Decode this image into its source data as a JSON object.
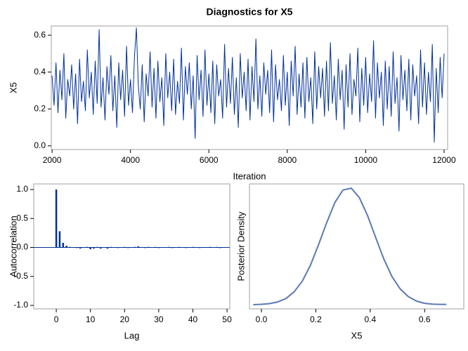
{
  "chart_data": [
    {
      "type": "line",
      "title": "Diagnostics for X5",
      "xlabel": "Iteration",
      "ylabel": "X5",
      "color": "#00309c",
      "xlim": [
        1980,
        12090
      ],
      "ylim": [
        -0.02,
        0.65
      ],
      "xticks": [
        2000,
        4000,
        6000,
        8000,
        10000,
        12000
      ],
      "yticks": [
        {
          "value": 0,
          "label": "0.0"
        },
        0.2,
        0.4,
        0.6
      ],
      "x": [
        2000,
        2050,
        2100,
        2150,
        2200,
        2250,
        2300,
        2350,
        2400,
        2450,
        2500,
        2550,
        2600,
        2650,
        2700,
        2750,
        2800,
        2850,
        2900,
        2950,
        3000,
        3050,
        3100,
        3150,
        3200,
        3250,
        3300,
        3350,
        3400,
        3450,
        3500,
        3550,
        3600,
        3650,
        3700,
        3750,
        3800,
        3850,
        3900,
        3950,
        4000,
        4050,
        4100,
        4150,
        4200,
        4250,
        4300,
        4350,
        4400,
        4450,
        4500,
        4550,
        4600,
        4650,
        4700,
        4750,
        4800,
        4850,
        4900,
        4950,
        5000,
        5050,
        5100,
        5150,
        5200,
        5250,
        5300,
        5350,
        5400,
        5450,
        5500,
        5550,
        5600,
        5650,
        5700,
        5750,
        5800,
        5850,
        5900,
        5950,
        6000,
        6050,
        6100,
        6150,
        6200,
        6250,
        6300,
        6350,
        6400,
        6450,
        6500,
        6550,
        6600,
        6650,
        6700,
        6750,
        6800,
        6850,
        6900,
        6950,
        7000,
        7050,
        7100,
        7150,
        7200,
        7250,
        7300,
        7350,
        7400,
        7450,
        7500,
        7550,
        7600,
        7650,
        7700,
        7750,
        7800,
        7850,
        7900,
        7950,
        8000,
        8050,
        8100,
        8150,
        8200,
        8250,
        8300,
        8350,
        8400,
        8450,
        8500,
        8550,
        8600,
        8650,
        8700,
        8750,
        8800,
        8850,
        8900,
        8950,
        9000,
        9050,
        9100,
        9150,
        9200,
        9250,
        9300,
        9350,
        9400,
        9450,
        9500,
        9550,
        9600,
        9650,
        9700,
        9750,
        9800,
        9850,
        9900,
        9950,
        10000,
        10050,
        10100,
        10150,
        10200,
        10250,
        10300,
        10350,
        10400,
        10450,
        10500,
        10550,
        10600,
        10650,
        10700,
        10750,
        10800,
        10850,
        10900,
        10950,
        11000,
        11050,
        11100,
        11150,
        11200,
        11250,
        11300,
        11350,
        11400,
        11450,
        11500,
        11550,
        11600,
        11650,
        11700,
        11750,
        11800,
        11850,
        11900,
        11950,
        12000
      ],
      "values": [
        0.38,
        0.22,
        0.45,
        0.18,
        0.41,
        0.25,
        0.5,
        0.15,
        0.36,
        0.27,
        0.44,
        0.2,
        0.39,
        0.12,
        0.47,
        0.24,
        0.35,
        0.19,
        0.52,
        0.26,
        0.4,
        0.17,
        0.46,
        0.23,
        0.63,
        0.21,
        0.37,
        0.14,
        0.43,
        0.28,
        0.49,
        0.19,
        0.38,
        0.1,
        0.45,
        0.25,
        0.41,
        0.16,
        0.54,
        0.22,
        0.36,
        0.18,
        0.48,
        0.64,
        0.33,
        0.2,
        0.44,
        0.13,
        0.39,
        0.27,
        0.51,
        0.21,
        0.42,
        0.15,
        0.46,
        0.24,
        0.37,
        0.11,
        0.5,
        0.26,
        0.4,
        0.19,
        0.47,
        0.17,
        0.35,
        0.23,
        0.53,
        0.14,
        0.43,
        0.28,
        0.45,
        0.2,
        0.38,
        0.04,
        0.49,
        0.25,
        0.41,
        0.16,
        0.52,
        0.22,
        0.39,
        0.18,
        0.46,
        0.12,
        0.44,
        0.27,
        0.36,
        0.15,
        0.55,
        0.21,
        0.42,
        0.23,
        0.48,
        0.17,
        0.37,
        0.1,
        0.5,
        0.26,
        0.4,
        0.19,
        0.47,
        0.14,
        0.43,
        0.24,
        0.58,
        0.2,
        0.38,
        0.16,
        0.45,
        0.28,
        0.41,
        0.18,
        0.52,
        0.13,
        0.44,
        0.25,
        0.36,
        0.19,
        0.49,
        0.22,
        0.4,
        0.11,
        0.46,
        0.27,
        0.54,
        0.17,
        0.39,
        0.21,
        0.45,
        0.15,
        0.48,
        0.24,
        0.37,
        0.12,
        0.51,
        0.2,
        0.43,
        0.26,
        0.42,
        0.16,
        0.46,
        0.19,
        0.56,
        0.23,
        0.38,
        0.14,
        0.47,
        0.25,
        0.41,
        0.09,
        0.44,
        0.21,
        0.5,
        0.17,
        0.36,
        0.27,
        0.53,
        0.13,
        0.42,
        0.22,
        0.48,
        0.18,
        0.39,
        0.24,
        0.57,
        0.15,
        0.45,
        0.26,
        0.4,
        0.11,
        0.46,
        0.2,
        0.43,
        0.16,
        0.51,
        0.23,
        0.37,
        0.08,
        0.49,
        0.25,
        0.41,
        0.19,
        0.47,
        0.14,
        0.44,
        0.27,
        0.38,
        0.12,
        0.52,
        0.21,
        0.45,
        0.17,
        0.4,
        0.24,
        0.55,
        0.02,
        0.42,
        0.18,
        0.48,
        0.26,
        0.5
      ]
    },
    {
      "type": "needle",
      "xlabel": "Lag",
      "ylabel": "Autocorrelation",
      "color": "#00309c",
      "xlim": [
        -6.6,
        50.8
      ],
      "ylim": [
        -1.06,
        1.097
      ],
      "xticks": [
        0,
        10,
        20,
        30,
        40,
        50
      ],
      "yticks": [
        {
          "value": -1,
          "label": "-1.0"
        },
        -0.5,
        {
          "value": 0,
          "label": "0.0"
        },
        0.5,
        {
          "value": 1,
          "label": "1.0"
        }
      ],
      "x": [
        0,
        1,
        2,
        3,
        4,
        5,
        6,
        7,
        8,
        9,
        10,
        11,
        12,
        13,
        14,
        15,
        16,
        17,
        18,
        19,
        20,
        21,
        22,
        23,
        24,
        25,
        26,
        27,
        28,
        29,
        30,
        31,
        32,
        33,
        34,
        35,
        36,
        37,
        38,
        39,
        40,
        41,
        42,
        43,
        44,
        45,
        46,
        47,
        48,
        49,
        50
      ],
      "values": [
        1.0,
        0.28,
        0.08,
        0.03,
        0.01,
        0.0,
        -0.01,
        -0.02,
        0.0,
        0.01,
        -0.03,
        -0.02,
        0.01,
        -0.02,
        0.0,
        -0.02,
        0.01,
        0.0,
        -0.01,
        0.0,
        0.01,
        -0.01,
        0.0,
        0.01,
        0.02,
        0.0,
        -0.01,
        0.01,
        0.0,
        0.01,
        -0.01,
        0.0,
        0.0,
        0.01,
        -0.01,
        0.0,
        0.01,
        0.0,
        -0.01,
        0.0,
        0.01,
        0.0,
        -0.01,
        0.0,
        0.0,
        0.01,
        0.0,
        0.01,
        -0.01,
        0.0,
        0.0
      ]
    },
    {
      "type": "line",
      "xlabel": "X5",
      "ylabel": "Posterior Density",
      "color": "#5b79b3",
      "xlim": [
        -0.044,
        0.744
      ],
      "ylim": [
        -0.15,
        4.33
      ],
      "xticks": [
        {
          "value": 0,
          "label": "0.0"
        },
        0.2,
        0.4,
        0.6
      ],
      "x": [
        -0.03,
        0.0,
        0.03,
        0.06,
        0.09,
        0.12,
        0.15,
        0.18,
        0.21,
        0.24,
        0.27,
        0.3,
        0.33,
        0.36,
        0.39,
        0.42,
        0.45,
        0.48,
        0.51,
        0.54,
        0.57,
        0.6,
        0.63,
        0.66,
        0.68
      ],
      "values": [
        0.0,
        0.014,
        0.039,
        0.098,
        0.22,
        0.46,
        0.84,
        1.41,
        2.15,
        2.94,
        3.66,
        4.11,
        4.18,
        3.84,
        3.2,
        2.41,
        1.64,
        1.01,
        0.57,
        0.29,
        0.13,
        0.05,
        0.02,
        0.01,
        0.01
      ]
    }
  ]
}
